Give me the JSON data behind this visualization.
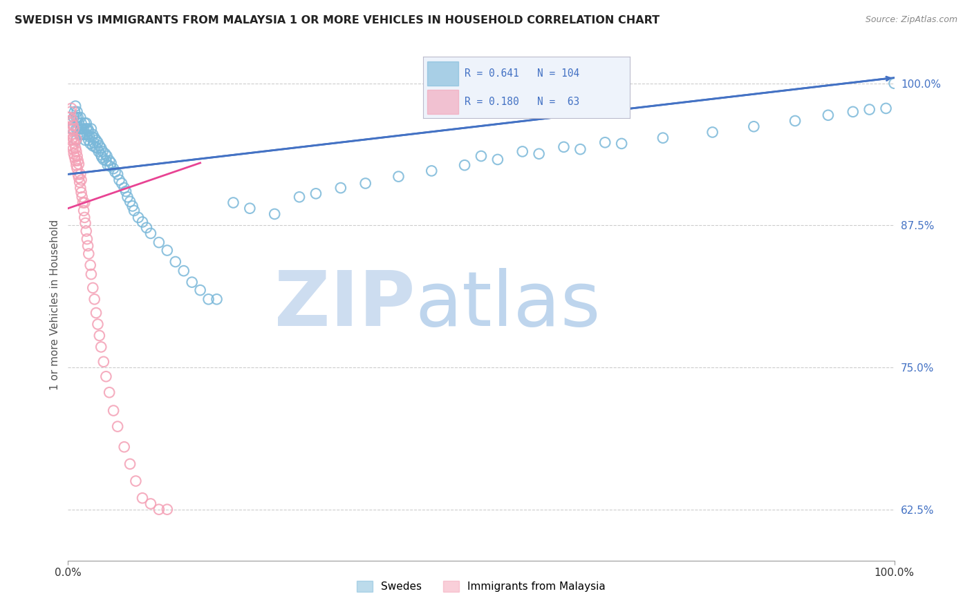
{
  "title": "SWEDISH VS IMMIGRANTS FROM MALAYSIA 1 OR MORE VEHICLES IN HOUSEHOLD CORRELATION CHART",
  "source": "Source: ZipAtlas.com",
  "ylabel": "1 or more Vehicles in Household",
  "xlim": [
    0.0,
    1.0
  ],
  "ylim": [
    0.58,
    1.03
  ],
  "ytick_vals": [
    0.625,
    0.75,
    0.875,
    1.0
  ],
  "grid_color": "#cccccc",
  "r_swedes": 0.641,
  "n_swedes": 104,
  "r_malaysia": 0.18,
  "n_malaysia": 63,
  "swede_color": "#7ab8d9",
  "malaysia_color": "#f4a0b5",
  "trend_swede_color": "#4472c4",
  "trend_malaysia_color": "#e84393",
  "swedes_scatter_x": [
    0.005,
    0.007,
    0.008,
    0.009,
    0.01,
    0.01,
    0.01,
    0.011,
    0.012,
    0.012,
    0.013,
    0.014,
    0.015,
    0.015,
    0.016,
    0.016,
    0.017,
    0.018,
    0.019,
    0.02,
    0.02,
    0.021,
    0.022,
    0.022,
    0.023,
    0.024,
    0.025,
    0.025,
    0.026,
    0.027,
    0.028,
    0.029,
    0.03,
    0.03,
    0.031,
    0.032,
    0.033,
    0.034,
    0.035,
    0.036,
    0.037,
    0.038,
    0.04,
    0.04,
    0.041,
    0.042,
    0.043,
    0.045,
    0.046,
    0.047,
    0.048,
    0.05,
    0.051,
    0.052,
    0.055,
    0.057,
    0.06,
    0.062,
    0.065,
    0.068,
    0.07,
    0.072,
    0.075,
    0.078,
    0.08,
    0.085,
    0.09,
    0.095,
    0.1,
    0.11,
    0.12,
    0.13,
    0.14,
    0.15,
    0.16,
    0.17,
    0.18,
    0.2,
    0.22,
    0.25,
    0.28,
    0.3,
    0.33,
    0.36,
    0.4,
    0.44,
    0.48,
    0.52,
    0.57,
    0.62,
    0.67,
    0.72,
    0.78,
    0.83,
    0.88,
    0.92,
    0.95,
    0.97,
    0.99,
    1.0,
    0.5,
    0.55,
    0.6,
    0.65
  ],
  "swedes_scatter_y": [
    0.96,
    0.97,
    0.975,
    0.98,
    0.95,
    0.96,
    0.97,
    0.975,
    0.96,
    0.97,
    0.965,
    0.955,
    0.96,
    0.97,
    0.955,
    0.965,
    0.96,
    0.955,
    0.96,
    0.955,
    0.965,
    0.95,
    0.96,
    0.965,
    0.955,
    0.96,
    0.95,
    0.958,
    0.953,
    0.947,
    0.96,
    0.953,
    0.945,
    0.955,
    0.948,
    0.952,
    0.944,
    0.95,
    0.943,
    0.948,
    0.94,
    0.945,
    0.937,
    0.943,
    0.935,
    0.94,
    0.933,
    0.938,
    0.932,
    0.936,
    0.928,
    0.932,
    0.927,
    0.93,
    0.925,
    0.922,
    0.92,
    0.915,
    0.912,
    0.908,
    0.905,
    0.9,
    0.896,
    0.892,
    0.888,
    0.882,
    0.878,
    0.873,
    0.868,
    0.86,
    0.853,
    0.843,
    0.835,
    0.825,
    0.818,
    0.81,
    0.81,
    0.895,
    0.89,
    0.885,
    0.9,
    0.903,
    0.908,
    0.912,
    0.918,
    0.923,
    0.928,
    0.933,
    0.938,
    0.942,
    0.947,
    0.952,
    0.957,
    0.962,
    0.967,
    0.972,
    0.975,
    0.977,
    0.978,
    1.0,
    0.936,
    0.94,
    0.944,
    0.948
  ],
  "malaysia_scatter_x": [
    0.002,
    0.003,
    0.003,
    0.004,
    0.004,
    0.004,
    0.005,
    0.005,
    0.005,
    0.006,
    0.006,
    0.006,
    0.007,
    0.007,
    0.007,
    0.008,
    0.008,
    0.009,
    0.009,
    0.01,
    0.01,
    0.01,
    0.011,
    0.011,
    0.012,
    0.012,
    0.013,
    0.013,
    0.014,
    0.015,
    0.015,
    0.016,
    0.016,
    0.017,
    0.018,
    0.019,
    0.02,
    0.02,
    0.021,
    0.022,
    0.023,
    0.024,
    0.025,
    0.027,
    0.028,
    0.03,
    0.032,
    0.034,
    0.036,
    0.038,
    0.04,
    0.043,
    0.046,
    0.05,
    0.055,
    0.06,
    0.068,
    0.075,
    0.082,
    0.09,
    0.1,
    0.11,
    0.12
  ],
  "malaysia_scatter_y": [
    0.97,
    0.96,
    0.975,
    0.95,
    0.965,
    0.978,
    0.945,
    0.955,
    0.968,
    0.942,
    0.952,
    0.963,
    0.938,
    0.95,
    0.96,
    0.935,
    0.947,
    0.932,
    0.943,
    0.928,
    0.94,
    0.951,
    0.925,
    0.936,
    0.92,
    0.932,
    0.917,
    0.929,
    0.913,
    0.908,
    0.92,
    0.904,
    0.915,
    0.9,
    0.895,
    0.888,
    0.882,
    0.895,
    0.877,
    0.87,
    0.863,
    0.857,
    0.85,
    0.84,
    0.832,
    0.82,
    0.81,
    0.798,
    0.788,
    0.778,
    0.768,
    0.755,
    0.742,
    0.728,
    0.712,
    0.698,
    0.68,
    0.665,
    0.65,
    0.635,
    0.63,
    0.625,
    0.625
  ]
}
